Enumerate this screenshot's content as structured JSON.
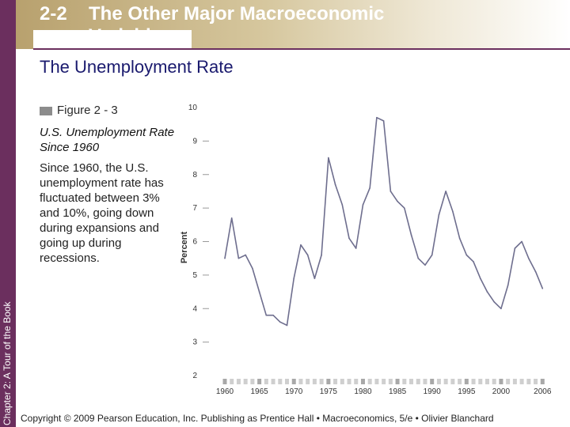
{
  "slide": {
    "number": "2-2",
    "title_line1": "The Other Major Macroeconomic",
    "title_line2": "Variables",
    "subtitle": "The Unemployment Rate",
    "side_label": "Chapter 2: A Tour of the Book",
    "copyright": "Copyright © 2009 Pearson Education, Inc. Publishing as Prentice Hall • Macroeconomics, 5/e • Olivier Blanchard",
    "accent_color": "#6b2f5e",
    "header_color": "#b8a16e"
  },
  "figure": {
    "label": "Figure 2 - 3",
    "title": "U.S. Unemployment Rate Since 1960",
    "description": "Since 1960, the U.S. unemployment rate has fluctuated between 3% and 10%, going down during expansions and going up during recessions."
  },
  "chart_data": {
    "type": "line",
    "ylabel": "Percent",
    "xlabel": "",
    "ylim": [
      2,
      10
    ],
    "xlim": [
      1960,
      2007
    ],
    "yticks": [
      2,
      3,
      4,
      5,
      6,
      7,
      8,
      9,
      10
    ],
    "xticks": [
      1960,
      1965,
      1970,
      1975,
      1980,
      1985,
      1990,
      1995,
      2000,
      2006
    ],
    "line_color": "#6e6e8e",
    "series": [
      {
        "x": [
          1960,
          1961,
          1962,
          1963,
          1964,
          1965,
          1966,
          1967,
          1968,
          1969,
          1970,
          1971,
          1972,
          1973,
          1974,
          1975,
          1976,
          1977,
          1978,
          1979,
          1980,
          1981,
          1982,
          1983,
          1984,
          1985,
          1986,
          1987,
          1988,
          1989,
          1990,
          1991,
          1992,
          1993,
          1994,
          1995,
          1996,
          1997,
          1998,
          1999,
          2000,
          2001,
          2002,
          2003,
          2004,
          2005,
          2006
        ],
        "values": [
          5.5,
          6.7,
          5.5,
          5.6,
          5.2,
          4.5,
          3.8,
          3.8,
          3.6,
          3.5,
          4.9,
          5.9,
          5.6,
          4.9,
          5.6,
          8.5,
          7.7,
          7.1,
          6.1,
          5.8,
          7.1,
          7.6,
          9.7,
          9.6,
          7.5,
          7.2,
          7.0,
          6.2,
          5.5,
          5.3,
          5.6,
          6.8,
          7.5,
          6.9,
          6.1,
          5.6,
          5.4,
          4.9,
          4.5,
          4.2,
          4.0,
          4.7,
          5.8,
          6.0,
          5.5,
          5.1,
          4.6
        ]
      }
    ]
  }
}
